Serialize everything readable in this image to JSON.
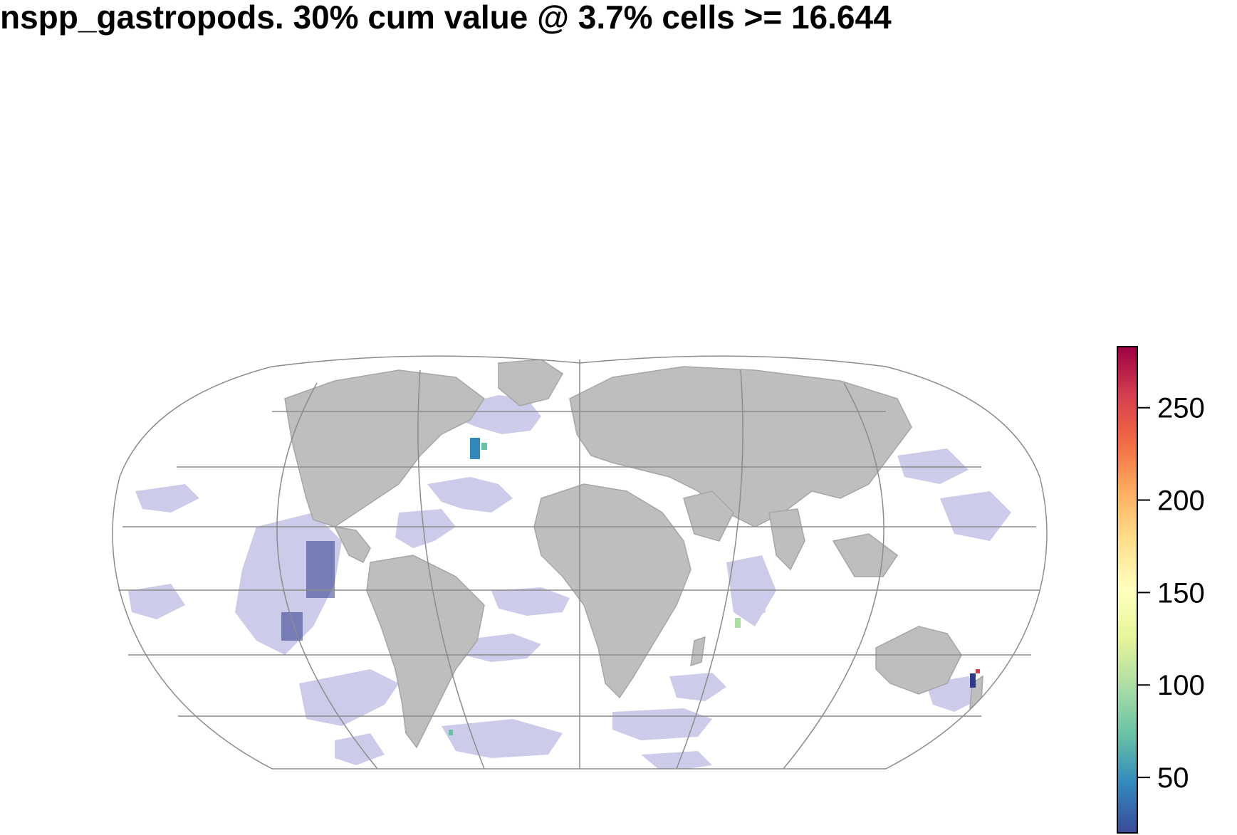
{
  "title": "nspp_gastropods. 30% cum value @ 3.7% cells >= 16.644",
  "colors": {
    "land": "#bebebe",
    "land_border": "#a6a6a6",
    "graticule": "#8c8c8c",
    "below_threshold": "#ccccea",
    "low_value": "#2f3a8a"
  },
  "legend": {
    "type": "continuous-colorbar",
    "palette": [
      "#3b4a9a",
      "#3288bd",
      "#66c2a5",
      "#abdda4",
      "#e6f598",
      "#ffffbf",
      "#fee08b",
      "#fdae61",
      "#f46d43",
      "#d53e4f",
      "#9e0142"
    ],
    "min": 20,
    "max": 283,
    "ticks": [
      {
        "value": 50,
        "label": "50"
      },
      {
        "value": 100,
        "label": "100"
      },
      {
        "value": 150,
        "label": "150"
      },
      {
        "value": 200,
        "label": "200"
      },
      {
        "value": 250,
        "label": "250"
      }
    ]
  }
}
